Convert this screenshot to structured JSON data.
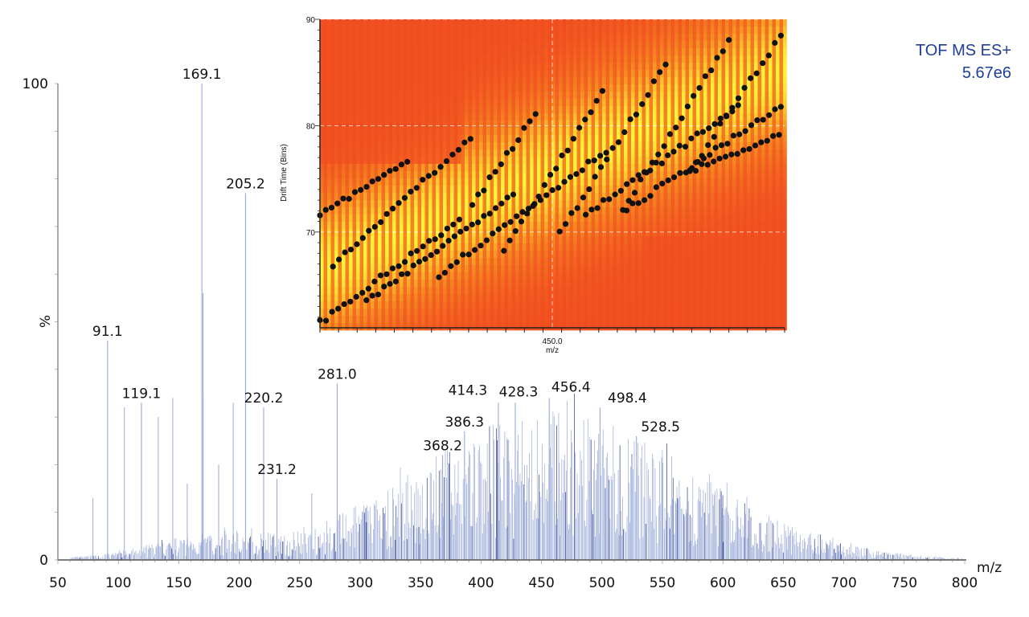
{
  "chart_data": [
    {
      "type": "bar",
      "subtype": "mass-spectrum",
      "xlabel": "m/z",
      "ylabel": "%",
      "xlim": [
        50,
        800
      ],
      "ylim": [
        0,
        100
      ],
      "xticks": [
        50,
        100,
        150,
        200,
        250,
        300,
        350,
        400,
        450,
        500,
        550,
        600,
        650,
        700,
        750,
        800
      ],
      "yticks": [
        0,
        100
      ],
      "annotation": {
        "line1": "TOF MS ES+",
        "line2": "5.67e6"
      },
      "labeled_peaks": [
        {
          "mz": 91.1,
          "intensity": 46,
          "label": "91.1"
        },
        {
          "mz": 119.1,
          "intensity": 33,
          "label": "119.1"
        },
        {
          "mz": 169.1,
          "intensity": 100,
          "label": "169.1"
        },
        {
          "mz": 205.2,
          "intensity": 77,
          "label": "205.2"
        },
        {
          "mz": 220.2,
          "intensity": 32,
          "label": "220.2"
        },
        {
          "mz": 231.2,
          "intensity": 17,
          "label": "231.2"
        },
        {
          "mz": 281.0,
          "intensity": 37,
          "label": "281.0"
        },
        {
          "mz": 368.2,
          "intensity": 22,
          "label": "368.2"
        },
        {
          "mz": 386.3,
          "intensity": 27,
          "label": "386.3"
        },
        {
          "mz": 414.3,
          "intensity": 33,
          "label": "414.3"
        },
        {
          "mz": 428.3,
          "intensity": 33,
          "label": "428.3"
        },
        {
          "mz": 456.4,
          "intensity": 34,
          "label": "456.4"
        },
        {
          "mz": 498.4,
          "intensity": 32,
          "label": "498.4"
        },
        {
          "mz": 528.5,
          "intensity": 26,
          "label": "528.5"
        }
      ],
      "other_peaks": [
        {
          "mz": 79,
          "intensity": 13
        },
        {
          "mz": 105,
          "intensity": 32
        },
        {
          "mz": 133,
          "intensity": 30
        },
        {
          "mz": 145,
          "intensity": 34
        },
        {
          "mz": 157,
          "intensity": 16
        },
        {
          "mz": 170,
          "intensity": 56
        },
        {
          "mz": 183,
          "intensity": 20
        },
        {
          "mz": 195,
          "intensity": 33
        },
        {
          "mz": 260,
          "intensity": 14
        },
        {
          "mz": 170.1,
          "intensity": 35
        }
      ],
      "envelope": {
        "center": 460,
        "width": 115,
        "max": 30,
        "spacing": 1.0
      },
      "colors": {
        "peak": "#9aaad8",
        "peak_dark": "#2c3c8c",
        "axis": "#555555"
      }
    },
    {
      "type": "heatmap",
      "subtype": "drift-time-vs-mz-inset",
      "xlabel": "m/z",
      "ylabel": "Drift Time (Bins)",
      "xlim": [
        325,
        575
      ],
      "ylim": [
        61,
        90
      ],
      "xtick_label": "450.0",
      "xtick_label_value": 450,
      "yticks": [
        70,
        80,
        90
      ],
      "colors": {
        "low": "#f04a20",
        "mid": "#f58a20",
        "high": "#fff23a",
        "dot": "#111111",
        "grid": "#ffffff"
      },
      "dot_series": [
        {
          "from": [
            325,
            71.7
          ],
          "to": [
            372,
            76.6
          ]
        },
        {
          "from": [
            332,
            67.0
          ],
          "to": [
            406,
            78.8
          ]
        },
        {
          "from": [
            407,
            72.6
          ],
          "to": [
            441,
            81.1
          ]
        },
        {
          "from": [
            424,
            68.3
          ],
          "to": [
            477,
            83.1
          ]
        },
        {
          "from": [
            454,
            69.8
          ],
          "to": [
            511,
            85.7
          ]
        },
        {
          "from": [
            488,
            72.1
          ],
          "to": [
            545,
            88.0
          ]
        },
        {
          "from": [
            524,
            75.7
          ],
          "to": [
            573,
            88.5
          ]
        },
        {
          "from": [
            325,
            61.5
          ],
          "to": [
            400,
            71.1
          ]
        },
        {
          "from": [
            350,
            63.4
          ],
          "to": [
            429,
            73.6
          ]
        },
        {
          "from": [
            389,
            66.0
          ],
          "to": [
            479,
            77.7
          ]
        },
        {
          "from": [
            468,
            71.6
          ],
          "to": [
            550,
            81.8
          ]
        },
        {
          "from": [
            490,
            72.1
          ],
          "to": [
            573,
            81.8
          ]
        },
        {
          "from": [
            524,
            75.7
          ],
          "to": [
            572,
            79.0
          ]
        }
      ]
    }
  ]
}
